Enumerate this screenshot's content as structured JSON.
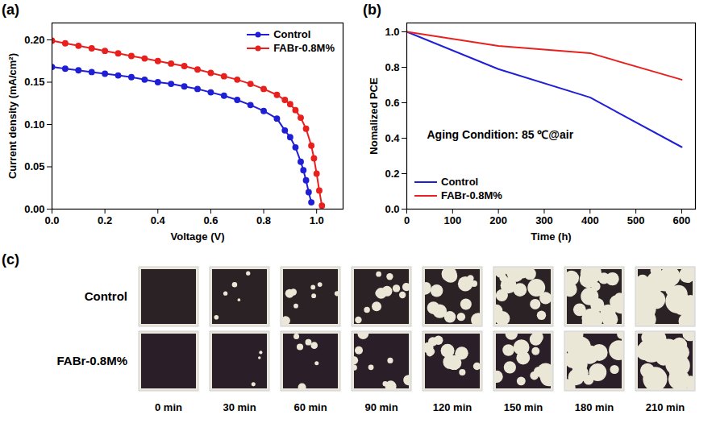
{
  "chart_data": [
    {
      "type": "line",
      "panel_label": "(a)",
      "x_label": "Voltage (V)",
      "y_label": "Current density (mA/cm²)",
      "xlim": [
        0,
        1.1
      ],
      "xticks": [
        {
          "value": 0,
          "label": "0.0"
        },
        {
          "value": 0.2,
          "label": "0.2"
        },
        {
          "value": 0.4,
          "label": "0.4"
        },
        {
          "value": 0.6,
          "label": "0.6"
        },
        {
          "value": 0.8,
          "label": "0.8"
        },
        {
          "value": 1,
          "label": "1.0"
        }
      ],
      "ylim": [
        0,
        0.22
      ],
      "yticks": [
        {
          "value": 0,
          "label": "0.00"
        },
        {
          "value": 0.05,
          "label": "0.05"
        },
        {
          "value": 0.1,
          "label": "0.10"
        },
        {
          "value": 0.15,
          "label": "0.15"
        },
        {
          "value": 0.2,
          "label": "0.20"
        }
      ],
      "grid": false,
      "legend": "upper right",
      "series": [
        {
          "name": "Control",
          "color": "#1f1fd6",
          "marker": "circle",
          "line_style": "solid",
          "x": [
            0,
            0.05,
            0.1,
            0.15,
            0.2,
            0.25,
            0.3,
            0.35,
            0.4,
            0.45,
            0.5,
            0.55,
            0.6,
            0.65,
            0.7,
            0.75,
            0.8,
            0.85,
            0.88,
            0.9,
            0.92,
            0.94,
            0.95,
            0.96,
            0.97,
            0.98
          ],
          "values": [
            0.168,
            0.166,
            0.164,
            0.162,
            0.16,
            0.158,
            0.156,
            0.153,
            0.15,
            0.148,
            0.145,
            0.142,
            0.138,
            0.134,
            0.129,
            0.123,
            0.116,
            0.107,
            0.093,
            0.085,
            0.073,
            0.056,
            0.046,
            0.034,
            0.02,
            0.008
          ]
        },
        {
          "name": "FABr-0.8M%",
          "color": "#e8201e",
          "marker": "circle",
          "line_style": "solid",
          "x": [
            0,
            0.05,
            0.1,
            0.15,
            0.2,
            0.25,
            0.3,
            0.35,
            0.4,
            0.45,
            0.5,
            0.55,
            0.6,
            0.65,
            0.7,
            0.75,
            0.8,
            0.85,
            0.88,
            0.9,
            0.92,
            0.94,
            0.96,
            0.98,
            0.99,
            1,
            1.01,
            1.02
          ],
          "values": [
            0.199,
            0.196,
            0.193,
            0.19,
            0.187,
            0.184,
            0.181,
            0.178,
            0.175,
            0.172,
            0.169,
            0.165,
            0.161,
            0.157,
            0.153,
            0.148,
            0.142,
            0.135,
            0.129,
            0.124,
            0.117,
            0.108,
            0.095,
            0.075,
            0.06,
            0.042,
            0.022,
            0.004
          ]
        }
      ]
    },
    {
      "type": "line",
      "panel_label": "(b)",
      "x_label": "Time (h)",
      "y_label": "Nomalized PCE",
      "annotations": [
        "Aging Condition: 85 ℃@air"
      ],
      "xlim": [
        0,
        630
      ],
      "xticks": [
        0,
        100,
        200,
        300,
        400,
        500,
        600
      ],
      "ylim": [
        0,
        1.05
      ],
      "yticks": [
        {
          "value": 0,
          "label": "0.0"
        },
        {
          "value": 0.2,
          "label": "0.2"
        },
        {
          "value": 0.4,
          "label": "0.4"
        },
        {
          "value": 0.6,
          "label": "0.6"
        },
        {
          "value": 0.8,
          "label": "0.8"
        },
        {
          "value": 1,
          "label": "1.0"
        }
      ],
      "grid": false,
      "legend": "lower left",
      "series": [
        {
          "name": "Control",
          "color": "#1f1fd6",
          "marker": "none",
          "line_style": "solid",
          "x": [
            0,
            200,
            400,
            600
          ],
          "values": [
            1,
            0.79,
            0.63,
            0.35
          ]
        },
        {
          "name": "FABr-0.8M%",
          "color": "#e8201e",
          "marker": "none",
          "line_style": "solid",
          "x": [
            0,
            200,
            400,
            600
          ],
          "values": [
            1,
            0.92,
            0.88,
            0.73
          ]
        }
      ]
    }
  ],
  "photo_panel": {
    "panel_label": "(c)",
    "rows": [
      "Control",
      "FABr-0.8M%"
    ],
    "times": [
      "0 min",
      "30 min",
      "60 min",
      "90 min",
      "120 min",
      "150 min",
      "180 min",
      "210 min"
    ]
  }
}
